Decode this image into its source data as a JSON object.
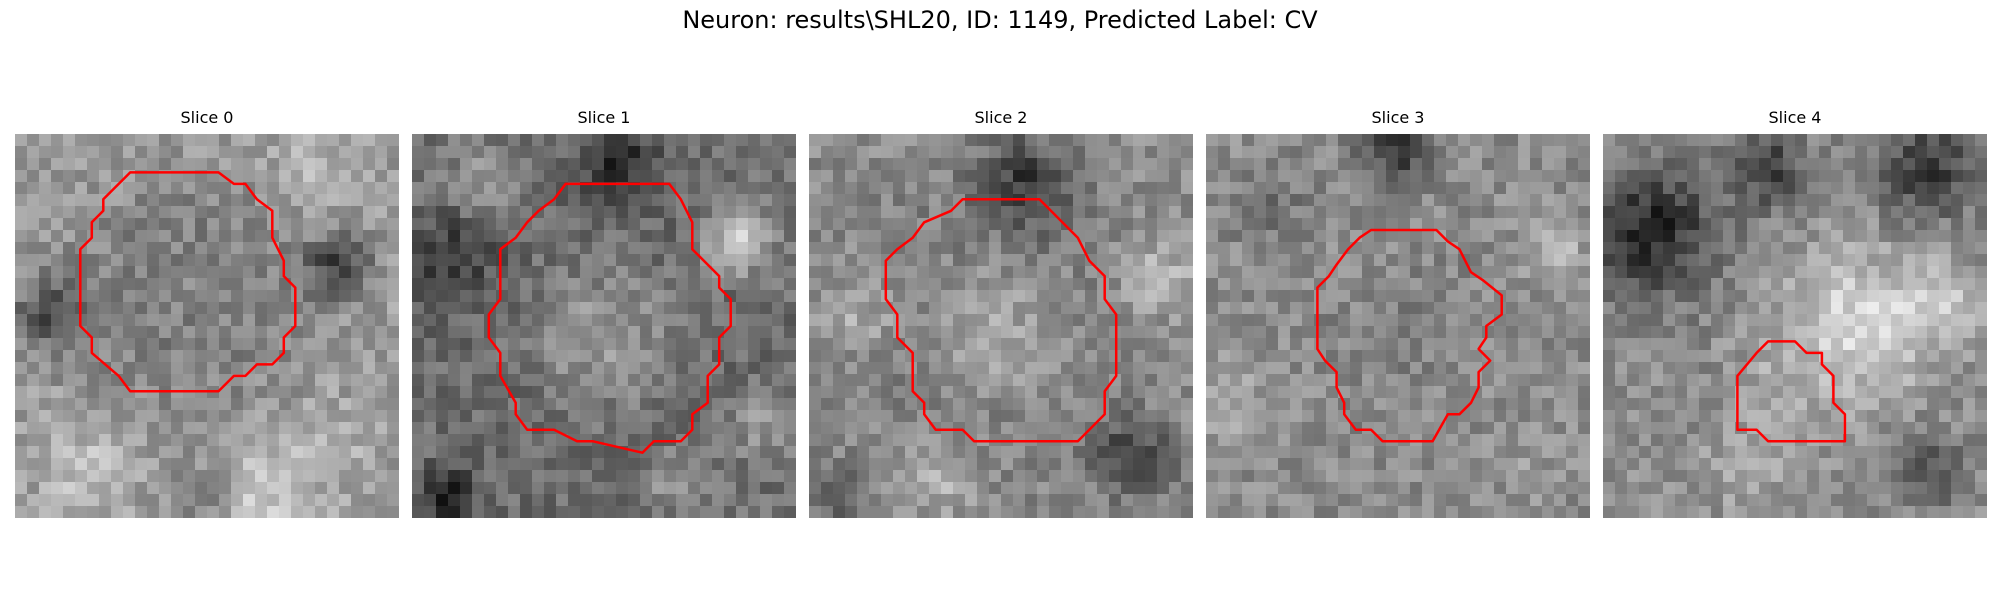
{
  "figure": {
    "title": "Neuron: results\\SHL20, ID: 1149, Predicted Label: CV"
  },
  "contour_color": "#ff0000",
  "panels": [
    {
      "label": "Slice 0"
    },
    {
      "label": "Slice 1"
    },
    {
      "label": "Slice 2"
    },
    {
      "label": "Slice 3"
    },
    {
      "label": "Slice 4"
    }
  ]
}
